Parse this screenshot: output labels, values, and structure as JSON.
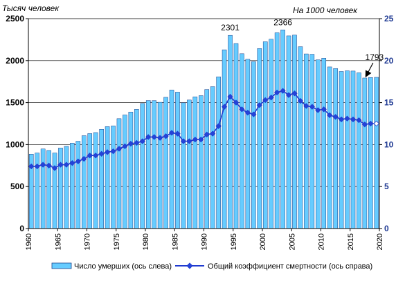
{
  "chart_data": {
    "type": "bar+line",
    "title": "",
    "unit_left": "Тысяч человек",
    "unit_right": "На 1000 человек",
    "x": [
      1960,
      1961,
      1962,
      1963,
      1964,
      1965,
      1966,
      1967,
      1968,
      1969,
      1970,
      1971,
      1972,
      1973,
      1974,
      1975,
      1976,
      1977,
      1978,
      1979,
      1980,
      1981,
      1982,
      1983,
      1984,
      1985,
      1986,
      1987,
      1988,
      1989,
      1990,
      1991,
      1992,
      1993,
      1994,
      1995,
      1996,
      1997,
      1998,
      1999,
      2000,
      2001,
      2002,
      2003,
      2004,
      2005,
      2006,
      2007,
      2008,
      2009,
      2010,
      2011,
      2012,
      2013,
      2014,
      2015,
      2016,
      2017,
      2018,
      2019
    ],
    "x_ticks": [
      1960,
      1965,
      1970,
      1975,
      1980,
      1985,
      1990,
      1995,
      2000,
      2005,
      2010,
      2015,
      2020
    ],
    "xlim": [
      1960,
      2020
    ],
    "ylim_left": [
      0,
      2500
    ],
    "yticks_left": [
      0,
      500,
      1000,
      1500,
      2000,
      2500
    ],
    "ylim_right": [
      0,
      25
    ],
    "yticks_right": [
      0,
      5,
      10,
      15,
      20,
      25
    ],
    "legend_position": "bottom",
    "series": [
      {
        "name": "Число умерших (ось слева)",
        "type": "bar",
        "axis": "left",
        "color": "#66ccff",
        "values": [
          886,
          900,
          948,
          930,
          900,
          959,
          979,
          1017,
          1040,
          1106,
          1131,
          1143,
          1182,
          1214,
          1222,
          1309,
          1353,
          1388,
          1420,
          1490,
          1525,
          1524,
          1504,
          1563,
          1650,
          1625,
          1498,
          1531,
          1569,
          1583,
          1656,
          1690,
          1807,
          2129,
          2301,
          2204,
          2082,
          2016,
          1988,
          2144,
          2225,
          2255,
          2332,
          2366,
          2295,
          2304,
          2166,
          2080,
          2076,
          2010,
          2029,
          1925,
          1906,
          1871,
          1879,
          1876,
          1855,
          1793,
          1799,
          1801
        ]
      },
      {
        "name": "Общий коэффициент смертности (ось справа)",
        "type": "line",
        "axis": "right",
        "color": "#1f3ad0",
        "values": [
          7.4,
          7.4,
          7.6,
          7.5,
          7.2,
          7.6,
          7.6,
          7.8,
          8.0,
          8.3,
          8.7,
          8.7,
          8.9,
          9.1,
          9.2,
          9.5,
          9.8,
          10.1,
          10.2,
          10.4,
          10.9,
          10.9,
          10.8,
          11.0,
          11.4,
          11.3,
          10.4,
          10.4,
          10.6,
          10.6,
          11.2,
          11.3,
          12.2,
          14.5,
          15.7,
          15.0,
          14.2,
          13.8,
          13.6,
          14.7,
          15.3,
          15.6,
          16.2,
          16.4,
          15.9,
          16.1,
          15.2,
          14.6,
          14.5,
          14.1,
          14.2,
          13.5,
          13.3,
          13.0,
          13.1,
          13.0,
          12.9,
          12.4,
          12.5,
          12.5
        ]
      }
    ],
    "annotations": [
      {
        "x": 1994,
        "label": "2301"
      },
      {
        "x": 2003,
        "label": "2366"
      },
      {
        "x": 2017,
        "label": "1793"
      }
    ]
  },
  "colors": {
    "bar_fill": "#66ccff",
    "bar_stroke": "#1a3f8a",
    "line": "#1f3ad0",
    "marker": "#2544d8",
    "grid": "#000000"
  }
}
